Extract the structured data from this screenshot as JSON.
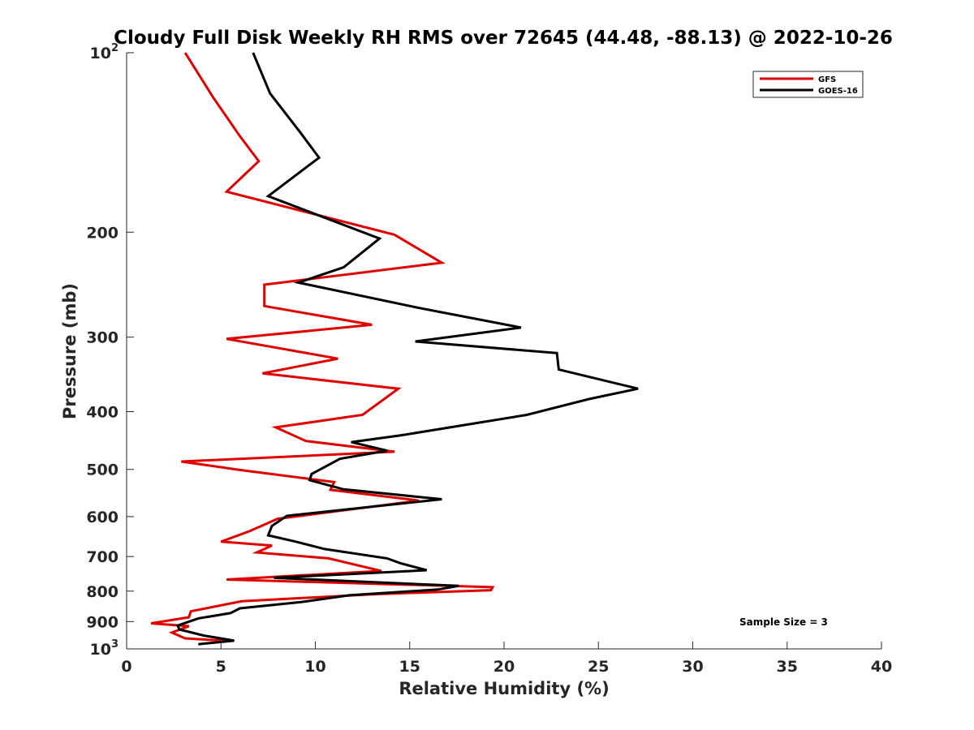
{
  "chart_data": {
    "type": "line",
    "title": "Cloudy Full Disk Weekly RH RMS over 72645 (44.48, -88.13) @ 2022-10-26",
    "xlabel": "Relative Humidity (%)",
    "ylabel": "Pressure (mb)",
    "xlim": [
      0,
      40
    ],
    "ylim": [
      100,
      1000
    ],
    "yscale": "log",
    "y_reversed": true,
    "x_ticks": [
      "0",
      "5",
      "10",
      "15",
      "20",
      "25",
      "30",
      "35",
      "40"
    ],
    "y_ticks": [
      {
        "value": 100,
        "base": "10",
        "exp": "2"
      },
      {
        "value": 200,
        "label": "200"
      },
      {
        "value": 300,
        "label": "300"
      },
      {
        "value": 400,
        "label": "400"
      },
      {
        "value": 500,
        "label": "500"
      },
      {
        "value": 600,
        "label": "600"
      },
      {
        "value": 700,
        "label": "700"
      },
      {
        "value": 800,
        "label": "800"
      },
      {
        "value": 900,
        "label": "900"
      },
      {
        "value": 1000,
        "base": "10",
        "exp": "3"
      }
    ],
    "grid": false,
    "legend_position": "top-right",
    "annotation": "Sample Size = 3",
    "series": [
      {
        "name": "GFS",
        "color": "#e00000",
        "points": [
          [
            3.1,
            100
          ],
          [
            4.6,
            119
          ],
          [
            6.0,
            138
          ],
          [
            7.0,
            152
          ],
          [
            5.3,
            171
          ],
          [
            14.2,
            202
          ],
          [
            16.7,
            225
          ],
          [
            7.3,
            245
          ],
          [
            7.3,
            266
          ],
          [
            13.0,
            286
          ],
          [
            5.3,
            302
          ],
          [
            11.2,
            326
          ],
          [
            7.2,
            345
          ],
          [
            14.4,
            366
          ],
          [
            12.5,
            405
          ],
          [
            7.9,
            425
          ],
          [
            9.5,
            448
          ],
          [
            14.2,
            467
          ],
          [
            2.9,
            485
          ],
          [
            6.0,
            501
          ],
          [
            11.0,
            525
          ],
          [
            10.8,
            541
          ],
          [
            15.5,
            564
          ],
          [
            8.0,
            605
          ],
          [
            6.5,
            635
          ],
          [
            5.0,
            661
          ],
          [
            7.7,
            671
          ],
          [
            6.9,
            689
          ],
          [
            10.7,
            705
          ],
          [
            13.5,
            740
          ],
          [
            5.3,
            765
          ],
          [
            19.4,
            788
          ],
          [
            19.3,
            797
          ],
          [
            13.0,
            810
          ],
          [
            6.1,
            832
          ],
          [
            3.4,
            865
          ],
          [
            3.3,
            885
          ],
          [
            1.3,
            906
          ],
          [
            3.3,
            916
          ],
          [
            2.4,
            939
          ],
          [
            3.1,
            960
          ],
          [
            5.4,
            970
          ]
        ]
      },
      {
        "name": "GOES-16",
        "color": "#000000",
        "points": [
          [
            6.7,
            100
          ],
          [
            7.6,
            117
          ],
          [
            9.2,
            136
          ],
          [
            10.2,
            150
          ],
          [
            7.5,
            174
          ],
          [
            13.4,
            205
          ],
          [
            11.5,
            229
          ],
          [
            9.1,
            243
          ],
          [
            15.5,
            268
          ],
          [
            20.9,
            289
          ],
          [
            15.3,
            305
          ],
          [
            22.8,
            319
          ],
          [
            22.9,
            340
          ],
          [
            27.1,
            366
          ],
          [
            24.5,
            381
          ],
          [
            21.2,
            405
          ],
          [
            14.6,
            438
          ],
          [
            11.9,
            450
          ],
          [
            13.8,
            465
          ],
          [
            11.3,
            480
          ],
          [
            9.8,
            509
          ],
          [
            9.7,
            521
          ],
          [
            11.5,
            540
          ],
          [
            16.7,
            561
          ],
          [
            8.5,
            598
          ],
          [
            7.7,
            622
          ],
          [
            7.5,
            645
          ],
          [
            8.9,
            660
          ],
          [
            10.5,
            680
          ],
          [
            13.8,
            705
          ],
          [
            14.5,
            718
          ],
          [
            15.9,
            738
          ],
          [
            7.8,
            760
          ],
          [
            17.6,
            784
          ],
          [
            16.5,
            795
          ],
          [
            11.8,
            813
          ],
          [
            9.3,
            834
          ],
          [
            6.0,
            855
          ],
          [
            5.5,
            871
          ],
          [
            3.8,
            889
          ],
          [
            2.7,
            914
          ],
          [
            2.8,
            928
          ],
          [
            4.1,
            950
          ],
          [
            5.7,
            969
          ],
          [
            3.8,
            982
          ]
        ]
      }
    ]
  }
}
